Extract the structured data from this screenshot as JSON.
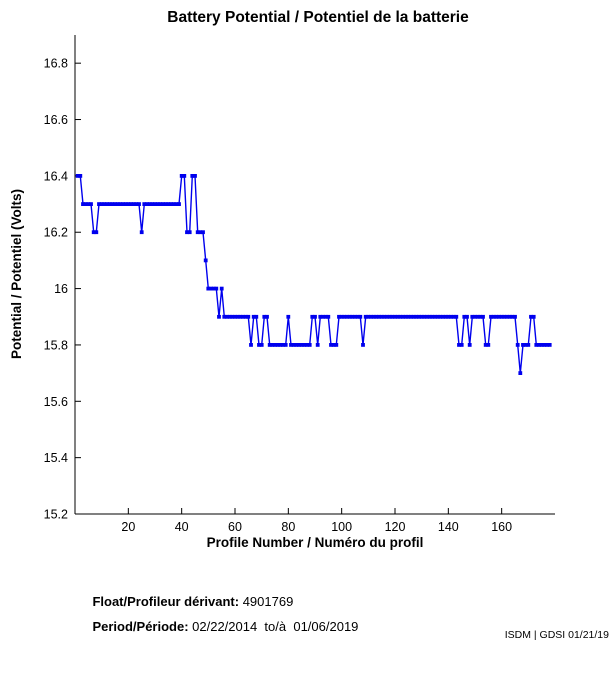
{
  "page": {
    "title": "Battery Potential / Potentiel de la batterie"
  },
  "chart_data": {
    "type": "line",
    "title": "Battery Potential / Potentiel de la batterie",
    "xlabel": "Profile Number / Numéro du profil",
    "ylabel": "Potential / Potentiel (Volts)",
    "xlim": [
      0,
      180
    ],
    "ylim": [
      15.2,
      16.9
    ],
    "xticks": [
      20,
      40,
      60,
      80,
      100,
      120,
      140,
      160
    ],
    "yticks": [
      {
        "v": 15.2,
        "label": "15.2"
      },
      {
        "v": 15.4,
        "label": "15.4"
      },
      {
        "v": 15.6,
        "label": "15.6"
      },
      {
        "v": 15.8,
        "label": "15.8"
      },
      {
        "v": 16.0,
        "label": "16"
      },
      {
        "v": 16.2,
        "label": "16.2"
      },
      {
        "v": 16.4,
        "label": "16.4"
      },
      {
        "v": 16.6,
        "label": "16.6"
      },
      {
        "v": 16.8,
        "label": "16.8"
      }
    ],
    "grid": false,
    "legend": "none",
    "line_color": "#0000EE",
    "marker": "filled-square",
    "series": [
      {
        "name": "Battery potential (Volts)",
        "x_start": 1,
        "y": [
          16.4,
          16.4,
          16.3,
          16.3,
          16.3,
          16.3,
          16.2,
          16.2,
          16.3,
          16.3,
          16.3,
          16.3,
          16.3,
          16.3,
          16.3,
          16.3,
          16.3,
          16.3,
          16.3,
          16.3,
          16.3,
          16.3,
          16.3,
          16.3,
          16.2,
          16.3,
          16.3,
          16.3,
          16.3,
          16.3,
          16.3,
          16.3,
          16.3,
          16.3,
          16.3,
          16.3,
          16.3,
          16.3,
          16.3,
          16.4,
          16.4,
          16.2,
          16.2,
          16.4,
          16.4,
          16.2,
          16.2,
          16.2,
          16.1,
          16.0,
          16.0,
          16.0,
          16.0,
          15.9,
          16.0,
          15.9,
          15.9,
          15.9,
          15.9,
          15.9,
          15.9,
          15.9,
          15.9,
          15.9,
          15.9,
          15.8,
          15.9,
          15.9,
          15.8,
          15.8,
          15.9,
          15.9,
          15.8,
          15.8,
          15.8,
          15.8,
          15.8,
          15.8,
          15.8,
          15.9,
          15.8,
          15.8,
          15.8,
          15.8,
          15.8,
          15.8,
          15.8,
          15.8,
          15.9,
          15.9,
          15.8,
          15.9,
          15.9,
          15.9,
          15.9,
          15.8,
          15.8,
          15.8,
          15.9,
          15.9,
          15.9,
          15.9,
          15.9,
          15.9,
          15.9,
          15.9,
          15.9,
          15.8,
          15.9,
          15.9,
          15.9,
          15.9,
          15.9,
          15.9,
          15.9,
          15.9,
          15.9,
          15.9,
          15.9,
          15.9,
          15.9,
          15.9,
          15.9,
          15.9,
          15.9,
          15.9,
          15.9,
          15.9,
          15.9,
          15.9,
          15.9,
          15.9,
          15.9,
          15.9,
          15.9,
          15.9,
          15.9,
          15.9,
          15.9,
          15.9,
          15.9,
          15.9,
          15.9,
          15.8,
          15.8,
          15.9,
          15.9,
          15.8,
          15.9,
          15.9,
          15.9,
          15.9,
          15.9,
          15.8,
          15.8,
          15.9,
          15.9,
          15.9,
          15.9,
          15.9,
          15.9,
          15.9,
          15.9,
          15.9,
          15.9,
          15.8,
          15.7,
          15.8,
          15.8,
          15.8,
          15.9,
          15.9,
          15.8,
          15.8,
          15.8,
          15.8,
          15.8,
          15.8
        ]
      }
    ]
  },
  "footer": {
    "float_label": "Float/Profileur dérivant:",
    "float_value": " 4901769",
    "period_label": "Period/Période:",
    "period_value": " 02/22/2014  to/à  01/06/2019",
    "credit": "ISDM | GDSI 01/21/19"
  }
}
